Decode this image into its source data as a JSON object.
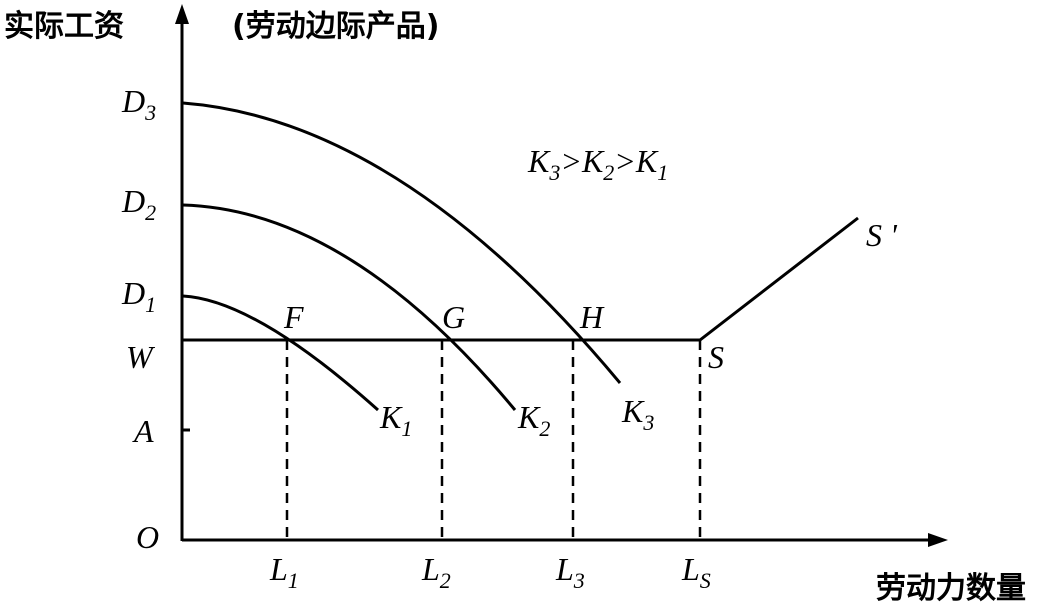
{
  "labels": {
    "y_axis_title": "实际工资",
    "y_axis_subtitle": "(劳动边际产品)",
    "x_axis_title": "劳动力数量",
    "origin": "O",
    "relation": {
      "k3": "K",
      "k3_sub": "3",
      "gt1": ">",
      "k2": "K",
      "k2_sub": "2",
      "gt2": ">",
      "k1": "K",
      "k1_sub": "1"
    }
  },
  "y_ticks": [
    {
      "main": "D",
      "sub": "3"
    },
    {
      "main": "D",
      "sub": "2"
    },
    {
      "main": "D",
      "sub": "1"
    },
    {
      "main": "W",
      "sub": ""
    },
    {
      "main": "A",
      "sub": ""
    }
  ],
  "x_ticks": [
    {
      "main": "L",
      "sub": "1"
    },
    {
      "main": "L",
      "sub": "2"
    },
    {
      "main": "L",
      "sub": "3"
    },
    {
      "main": "L",
      "sub": "S"
    }
  ],
  "curves": [
    {
      "main": "K",
      "sub": "1"
    },
    {
      "main": "K",
      "sub": "2"
    },
    {
      "main": "K",
      "sub": "3"
    }
  ],
  "points": {
    "f": "F",
    "g": "G",
    "h": "H",
    "s": "S",
    "s_prime": "S '"
  }
}
